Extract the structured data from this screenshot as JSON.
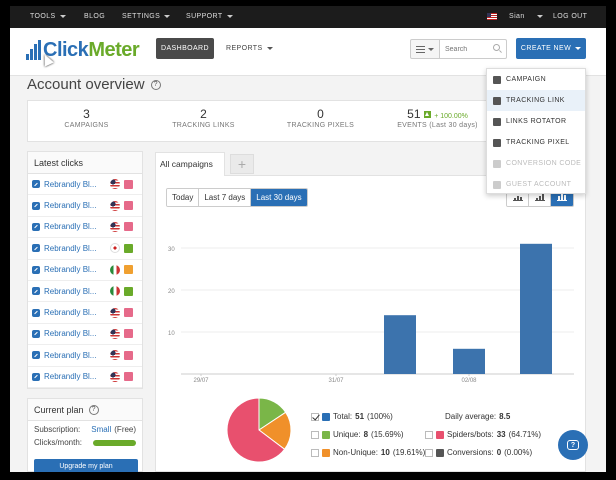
{
  "topbar": {
    "tools": "TOOLS",
    "blog": "BLOG",
    "settings": "SETTINGS",
    "support": "SUPPORT",
    "user": "Sian",
    "logout": "LOG OUT"
  },
  "header": {
    "logo_click": "Click",
    "logo_meter": "Meter",
    "dashboard": "DASHBOARD",
    "reports": "REPORTS",
    "search_placeholder": "Search",
    "create_new": "CREATE NEW"
  },
  "page_title": "Account overview",
  "help_glyph": "?",
  "stats": [
    {
      "num": "3",
      "label": "CAMPAIGNS"
    },
    {
      "num": "2",
      "label": "TRACKING LINKS"
    },
    {
      "num": "0",
      "label": "TRACKING PIXELS"
    },
    {
      "num": "51",
      "growth": "+ 100.00%",
      "label": "EVENTS (Last 30 days)"
    }
  ],
  "create_menu": [
    {
      "label": "CAMPAIGN"
    },
    {
      "label": "TRACKING LINK"
    },
    {
      "label": "LINKS ROTATOR"
    },
    {
      "label": "TRACKING PIXEL"
    },
    {
      "label": "CONVERSION CODE"
    },
    {
      "label": "GUEST ACCOUNT"
    }
  ],
  "latest_clicks": {
    "title": "Latest clicks",
    "rows": [
      {
        "name": "Rebrandly Bl...",
        "country": "us",
        "visit": "bot"
      },
      {
        "name": "Rebrandly Bl...",
        "country": "us",
        "visit": "bot"
      },
      {
        "name": "Rebrandly Bl...",
        "country": "us",
        "visit": "bot"
      },
      {
        "name": "Rebrandly Bl...",
        "country": "jp",
        "visit": "unique"
      },
      {
        "name": "Rebrandly Bl...",
        "country": "it",
        "visit": "nonunique"
      },
      {
        "name": "Rebrandly Bl...",
        "country": "it",
        "visit": "unique"
      },
      {
        "name": "Rebrandly Bl...",
        "country": "us",
        "visit": "bot"
      },
      {
        "name": "Rebrandly Bl...",
        "country": "us",
        "visit": "bot"
      },
      {
        "name": "Rebrandly Bl...",
        "country": "us",
        "visit": "bot"
      },
      {
        "name": "Rebrandly Bl...",
        "country": "us",
        "visit": "bot"
      }
    ]
  },
  "plan": {
    "title": "Current plan",
    "subscription_label": "Subscription:",
    "subscription_value": "Small",
    "subscription_type": "(Free)",
    "clicks_label": "Clicks/month:",
    "upgrade": "Upgrade my plan"
  },
  "tabs": {
    "all": "All campaigns",
    "add": "+"
  },
  "ranges": [
    "Today",
    "Last 7 days",
    "Last 30 days"
  ],
  "active_range": 2,
  "chart_data": [
    {
      "type": "bar",
      "ylim": [
        0,
        30
      ],
      "yticks": [
        30,
        20,
        10
      ],
      "xtick_labels": [
        "29/07",
        "31/07",
        "02/08"
      ],
      "bars": [
        {
          "x": "01/08",
          "value": 14
        },
        {
          "x": "02/08",
          "value": 6
        },
        {
          "x": "03/08",
          "value": 31
        }
      ]
    },
    {
      "type": "pie",
      "slices": [
        {
          "name": "Unique",
          "value": 8,
          "color": "#7ab648"
        },
        {
          "name": "Non-Unique",
          "value": 10,
          "color": "#f0902a"
        },
        {
          "name": "Spiders/bots",
          "value": 33,
          "color": "#e8506e"
        }
      ]
    }
  ],
  "legend": {
    "total": {
      "label": "Total:",
      "value": "51",
      "pct": "(100%)",
      "color": "#2a6fb5"
    },
    "daily": {
      "label": "Daily average:",
      "value": "8.5"
    },
    "unique": {
      "label": "Unique:",
      "value": "8",
      "pct": "(15.69%)",
      "color": "#7ab648"
    },
    "bots": {
      "label": "Spiders/bots:",
      "value": "33",
      "pct": "(64.71%)",
      "color": "#e8506e"
    },
    "nonunique": {
      "label": "Non-Unique:",
      "value": "10",
      "pct": "(19.61%)",
      "color": "#f0902a"
    },
    "conversions": {
      "label": "Conversions:",
      "value": "0",
      "pct": "(0.00%)",
      "color": "#555555"
    }
  }
}
